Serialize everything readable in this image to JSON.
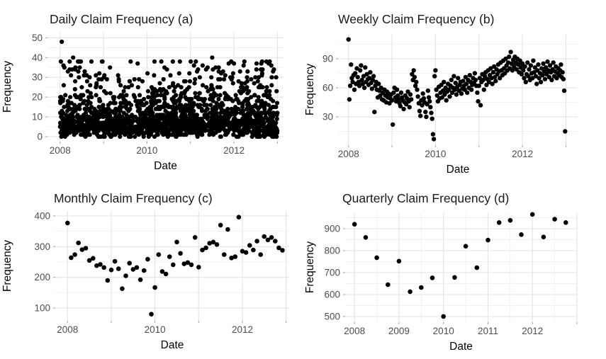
{
  "figure": {
    "background": "#ffffff",
    "point_color": "#000000",
    "grid_major_color": "#e6e6e6",
    "grid_minor_color": "#efefef",
    "tick_mark_color": "#9e9e9e",
    "tick_label_color": "#4d4d4d",
    "title_color": "#1a1a1a",
    "axis_label_color": "#000000"
  },
  "chart_data": [
    {
      "id": "daily",
      "type": "scatter",
      "title": "Daily Claim Frequency (a)",
      "xlabel": "Date",
      "ylabel": "Frequency",
      "xlim": [
        2007.71,
        2013.14
      ],
      "ylim": [
        -2.5,
        53
      ],
      "x_axis": {
        "major": [
          2008,
          2009,
          2010,
          2011,
          2012,
          2013
        ],
        "minor": [],
        "labels": [
          {
            "value": 2008,
            "text": "2008"
          },
          {
            "value": 2010,
            "text": "2010"
          },
          {
            "value": 2012,
            "text": "2012"
          }
        ]
      },
      "y_axis": {
        "major": [
          0,
          10,
          20,
          30,
          40,
          50
        ],
        "minor": [
          5,
          15,
          25,
          35,
          45
        ],
        "labels": [
          {
            "value": 0,
            "text": "0"
          },
          {
            "value": 10,
            "text": "10"
          },
          {
            "value": 20,
            "text": "20"
          },
          {
            "value": 30,
            "text": "30"
          },
          {
            "value": 40,
            "text": "40"
          },
          {
            "value": 50,
            "text": "50"
          }
        ]
      },
      "points": {
        "mode": "generated",
        "seed": 11,
        "count": 1720,
        "x_start": 2008.0,
        "x_end": 2013.0,
        "trend": [
          [
            2008.0,
            12
          ],
          [
            2009.3,
            9.5
          ],
          [
            2010.6,
            10
          ],
          [
            2013.0,
            13
          ]
        ],
        "noise": 7,
        "tail_prob": 0.05,
        "tail_span": 13,
        "max": 38,
        "outliers": [
          [
            2008.04,
            48
          ],
          [
            2008.1,
            35
          ],
          [
            2008.18,
            33
          ],
          [
            2008.22,
            34
          ],
          [
            2008.3,
            40
          ],
          [
            2008.35,
            34
          ],
          [
            2008.42,
            33
          ],
          [
            2008.55,
            31
          ],
          [
            2009.02,
            31
          ],
          [
            2009.35,
            29
          ],
          [
            2009.6,
            28
          ],
          [
            2010.38,
            29
          ],
          [
            2010.6,
            27
          ],
          [
            2011.08,
            36
          ],
          [
            2011.15,
            33
          ],
          [
            2011.28,
            36
          ],
          [
            2011.36,
            34
          ],
          [
            2011.5,
            40
          ],
          [
            2011.58,
            35
          ],
          [
            2011.65,
            33
          ],
          [
            2011.8,
            31
          ],
          [
            2011.88,
            37
          ],
          [
            2012.0,
            37
          ],
          [
            2012.14,
            33
          ],
          [
            2012.3,
            30
          ],
          [
            2012.52,
            37
          ],
          [
            2012.62,
            34
          ],
          [
            2012.8,
            37
          ],
          [
            2012.86,
            36
          ],
          [
            2012.92,
            34
          ],
          [
            2012.97,
            30
          ]
        ]
      }
    },
    {
      "id": "weekly",
      "type": "scatter",
      "title": "Weekly Claim Frequency (b)",
      "xlabel": "Date",
      "ylabel": "Frequency",
      "xlim": [
        2007.76,
        2013.27
      ],
      "ylim": [
        0.7,
        115.6
      ],
      "x_axis": {
        "major": [
          2008,
          2009,
          2010,
          2011,
          2012,
          2013
        ],
        "minor": [],
        "labels": [
          {
            "value": 2008,
            "text": "2008"
          },
          {
            "value": 2010,
            "text": "2010"
          },
          {
            "value": 2012,
            "text": "2012"
          }
        ]
      },
      "y_axis": {
        "major": [
          30,
          60,
          90
        ],
        "minor": [
          15,
          45,
          75,
          105
        ],
        "labels": [
          {
            "value": 30,
            "text": "30"
          },
          {
            "value": 60,
            "text": "60"
          },
          {
            "value": 90,
            "text": "90"
          }
        ]
      },
      "points": {
        "mode": "series",
        "x_start": 2008.0,
        "x_step": 0.019231,
        "values": [
          110,
          48,
          62,
          84,
          70,
          66,
          73,
          58,
          75,
          64,
          80,
          71,
          66,
          62,
          78,
          83,
          68,
          64,
          72,
          60,
          81,
          66,
          74,
          69,
          63,
          70,
          76,
          65,
          59,
          68,
          72,
          35,
          62,
          66,
          58,
          50,
          64,
          57,
          52,
          60,
          48,
          55,
          47,
          58,
          52,
          45,
          56,
          50,
          54,
          44,
          49,
          53,
          47,
          22,
          55,
          60,
          50,
          46,
          58,
          52,
          48,
          44,
          41,
          55,
          50,
          47,
          38,
          45,
          52,
          43,
          49,
          56,
          46,
          40,
          53,
          48,
          74,
          68,
          78,
          71,
          62,
          66,
          58,
          51,
          44,
          36,
          31,
          47,
          42,
          54,
          49,
          45,
          35,
          30,
          43,
          57,
          50,
          46,
          40,
          34,
          28,
          12,
          7,
          72,
          78,
          58,
          52,
          46,
          61,
          49,
          55,
          63,
          50,
          57,
          66,
          53,
          60,
          47,
          56,
          64,
          58,
          51,
          62,
          68,
          55,
          60,
          72,
          58,
          65,
          53,
          61,
          70,
          57,
          63,
          66,
          54,
          59,
          67,
          62,
          58,
          71,
          64,
          55,
          68,
          60,
          73,
          66,
          58,
          63,
          70,
          65,
          75,
          68,
          62,
          55,
          46,
          62,
          70,
          42,
          66,
          74,
          68,
          58,
          72,
          76,
          63,
          69,
          78,
          66,
          73,
          80,
          70,
          64,
          76,
          82,
          71,
          67,
          79,
          74,
          84,
          77,
          70,
          86,
          78,
          73,
          88,
          80,
          75,
          90,
          83,
          78,
          86,
          92,
          80,
          97,
          85,
          78,
          89,
          82,
          92,
          86,
          79,
          90,
          84,
          76,
          88,
          81,
          74,
          85,
          78,
          70,
          82,
          66,
          74,
          86,
          72,
          79,
          68,
          83,
          75,
          70,
          88,
          76,
          81,
          72,
          64,
          78,
          84,
          70,
          75,
          66,
          80,
          73,
          85,
          77,
          69,
          81,
          74,
          87,
          78,
          71,
          83,
          76,
          68,
          79,
          86,
          72,
          77,
          82,
          70,
          75,
          80,
          73,
          78,
          84,
          71,
          76,
          69,
          57,
          15
        ]
      }
    },
    {
      "id": "monthly",
      "type": "scatter",
      "title": "Monthly Claim Frequency (c)",
      "xlabel": "Date",
      "ylabel": "Frequency",
      "xlim": [
        2007.72,
        2013.07
      ],
      "ylim": [
        58.5,
        416
      ],
      "x_axis": {
        "major": [
          2008,
          2009,
          2010,
          2011,
          2012,
          2013
        ],
        "minor": [],
        "labels": [
          {
            "value": 2008,
            "text": "2008"
          },
          {
            "value": 2010,
            "text": "2010"
          },
          {
            "value": 2012,
            "text": "2012"
          }
        ]
      },
      "y_axis": {
        "major": [
          100,
          200,
          300,
          400
        ],
        "minor": [
          150,
          250,
          350
        ],
        "labels": [
          {
            "value": 100,
            "text": "100"
          },
          {
            "value": 200,
            "text": "200"
          },
          {
            "value": 300,
            "text": "300"
          },
          {
            "value": 400,
            "text": "400"
          }
        ]
      },
      "points": {
        "mode": "series",
        "x_start": 2008.0,
        "x_step": 0.083333,
        "values": [
          377,
          264,
          274,
          312,
          290,
          295,
          255,
          262,
          238,
          242,
          232,
          190,
          224,
          252,
          228,
          163,
          205,
          246,
          226,
          232,
          192,
          222,
          259,
          80,
          167,
          274,
          219,
          211,
          267,
          241,
          315,
          278,
          244,
          248,
          241,
          330,
          233,
          289,
          296,
          311,
          315,
          307,
          370,
          274,
          356,
          263,
          267,
          396,
          285,
          281,
          304,
          289,
          318,
          274,
          333,
          322,
          330,
          318,
          296,
          288
        ]
      }
    },
    {
      "id": "quarterly",
      "type": "scatter",
      "title": "Quarterly Claim Frequency (d)",
      "xlabel": "Date",
      "ylabel": "Frequency",
      "xlim": [
        2007.79,
        2013.0
      ],
      "ylim": [
        474,
        974
      ],
      "x_axis": {
        "major": [
          2008,
          2009,
          2010,
          2011,
          2012,
          2013
        ],
        "minor": [
          2008.5,
          2009.5,
          2010.5,
          2011.5,
          2012.5
        ],
        "labels": [
          {
            "value": 2008,
            "text": "2008"
          },
          {
            "value": 2009,
            "text": "2009"
          },
          {
            "value": 2010,
            "text": "2010"
          },
          {
            "value": 2011,
            "text": "2011"
          },
          {
            "value": 2012,
            "text": "2012"
          }
        ]
      },
      "y_axis": {
        "major": [
          500,
          600,
          700,
          800,
          900
        ],
        "minor": [
          550,
          650,
          750,
          850,
          950
        ],
        "labels": [
          {
            "value": 500,
            "text": "500"
          },
          {
            "value": 600,
            "text": "600"
          },
          {
            "value": 700,
            "text": "700"
          },
          {
            "value": 800,
            "text": "800"
          },
          {
            "value": 900,
            "text": "900"
          }
        ]
      },
      "points": {
        "mode": "series",
        "x_start": 2008.0,
        "x_step": 0.25,
        "values": [
          920,
          860,
          768,
          645,
          752,
          613,
          632,
          676,
          500,
          678,
          820,
          722,
          848,
          928,
          938,
          873,
          965,
          862,
          943,
          928
        ]
      }
    }
  ]
}
